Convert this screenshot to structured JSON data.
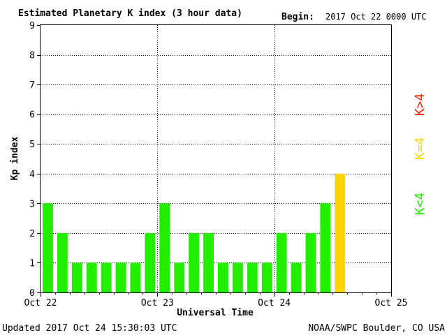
{
  "header": {
    "title": "Estimated Planetary K index (3 hour data)",
    "begin_label": "Begin:",
    "begin_value": "2017 Oct 22 0000 UTC"
  },
  "footer": {
    "updated": "Updated 2017 Oct 24 15:30:03 UTC",
    "source": "NOAA/SWPC Boulder, CO USA"
  },
  "legend": {
    "k_gt4": "K>4",
    "k_eq4": "K=4",
    "k_lt4": "K<4"
  },
  "colors": {
    "low": "#22ee00",
    "moderate": "#ffd400",
    "storm": "#ff2200",
    "bar_outline": "#009900",
    "frame": "#000000"
  },
  "chart_data": {
    "type": "bar",
    "title": "Estimated Planetary K index (3 hour data)",
    "xlabel": "Universal Time",
    "ylabel": "Kp index",
    "ylim": [
      0,
      9
    ],
    "yticks": [
      0,
      1,
      2,
      3,
      4,
      5,
      6,
      7,
      8,
      9
    ],
    "x_tick_labels": [
      "Oct 22",
      "Oct 23",
      "Oct 24",
      "Oct 25"
    ],
    "intervals_per_day": 8,
    "days": 3,
    "grid": "dotted",
    "values": [
      3,
      2,
      1,
      1,
      1,
      1,
      1,
      2,
      3,
      1,
      2,
      2,
      1,
      1,
      1,
      1,
      2,
      1,
      2,
      3,
      4
    ]
  }
}
